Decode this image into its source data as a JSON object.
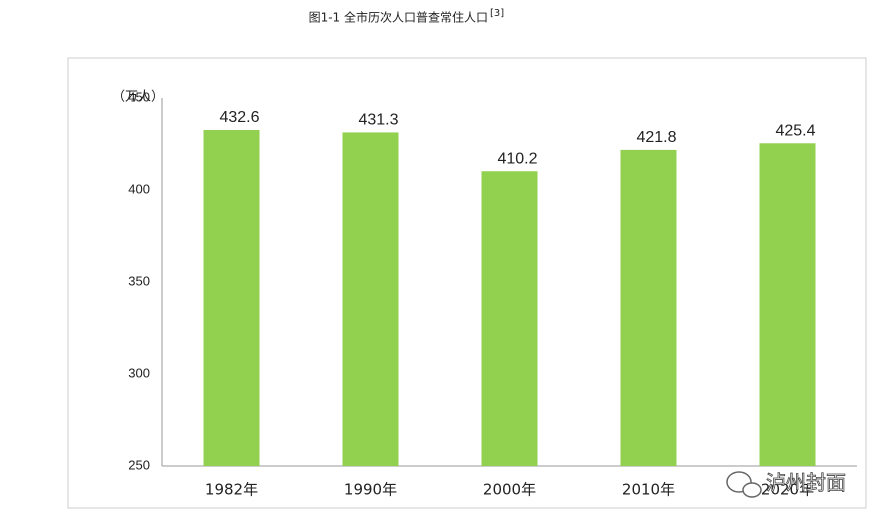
{
  "chart_data": {
    "type": "bar",
    "title": "图1-1  全市历次人口普查常住人口",
    "title_superscript": "[3]",
    "unit_label": "（万人）",
    "watermark": "泸州封面",
    "categories": [
      "1982年",
      "1990年",
      "2000年",
      "2010年",
      "2020年"
    ],
    "values": [
      432.6,
      431.3,
      410.2,
      421.8,
      425.4
    ],
    "color": "#92d050",
    "ylim": [
      250,
      450
    ],
    "yticks": [
      250,
      300,
      350,
      400,
      450
    ],
    "grid": false
  }
}
